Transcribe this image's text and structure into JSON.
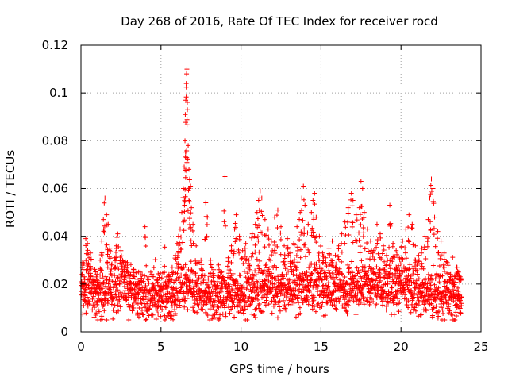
{
  "chart_data": {
    "type": "scatter",
    "title": "Day 268 of 2016, Rate Of TEC Index for receiver rocd",
    "xlabel": "GPS time / hours",
    "ylabel": "ROTI / TECUs",
    "xlim": [
      0,
      25
    ],
    "ylim": [
      0,
      0.12
    ],
    "x_ticks": [
      0,
      5,
      10,
      15,
      20,
      25
    ],
    "y_ticks": [
      0,
      0.02,
      0.04,
      0.06,
      0.08,
      0.1,
      0.12
    ],
    "x_tick_labels": [
      "0",
      "5",
      "10",
      "15",
      "20",
      "25"
    ],
    "y_tick_labels": [
      "0",
      "0.02",
      "0.04",
      "0.06",
      "0.08",
      "0.1",
      "0.12"
    ],
    "grid": true,
    "marker": "+",
    "color": "#ff0000",
    "series": [
      {
        "name": "ROTI",
        "points": [
          [
            0.1,
            0.029
          ],
          [
            0.2,
            0.023
          ],
          [
            0.3,
            0.039
          ],
          [
            0.4,
            0.037
          ],
          [
            0.5,
            0.031
          ],
          [
            0.6,
            0.033
          ],
          [
            0.8,
            0.021
          ],
          [
            0.9,
            0.018
          ],
          [
            1.0,
            0.024
          ],
          [
            1.2,
            0.03
          ],
          [
            1.3,
            0.038
          ],
          [
            1.4,
            0.047
          ],
          [
            1.5,
            0.056
          ],
          [
            1.6,
            0.049
          ],
          [
            1.7,
            0.045
          ],
          [
            1.8,
            0.035
          ],
          [
            1.9,
            0.028
          ],
          [
            2.1,
            0.031
          ],
          [
            2.2,
            0.036
          ],
          [
            2.3,
            0.041
          ],
          [
            2.5,
            0.034
          ],
          [
            2.7,
            0.027
          ],
          [
            2.9,
            0.029
          ],
          [
            3.1,
            0.024
          ],
          [
            3.3,
            0.026
          ],
          [
            3.5,
            0.022
          ],
          [
            3.7,
            0.025
          ],
          [
            4.0,
            0.044
          ],
          [
            4.2,
            0.023
          ],
          [
            4.5,
            0.02
          ],
          [
            4.8,
            0.022
          ],
          [
            5.0,
            0.019
          ],
          [
            5.3,
            0.021
          ],
          [
            5.5,
            0.024
          ],
          [
            5.7,
            0.027
          ],
          [
            5.9,
            0.032
          ],
          [
            6.0,
            0.037
          ],
          [
            6.1,
            0.04
          ],
          [
            6.2,
            0.043
          ],
          [
            6.3,
            0.05
          ],
          [
            6.4,
            0.06
          ],
          [
            6.45,
            0.069
          ],
          [
            6.5,
            0.08
          ],
          [
            6.52,
            0.091
          ],
          [
            6.55,
            0.097
          ],
          [
            6.58,
            0.104
          ],
          [
            6.6,
            0.108
          ],
          [
            6.62,
            0.11
          ],
          [
            6.65,
            0.093
          ],
          [
            6.7,
            0.078
          ],
          [
            6.75,
            0.068
          ],
          [
            6.8,
            0.064
          ],
          [
            6.85,
            0.061
          ],
          [
            6.9,
            0.052
          ],
          [
            7.0,
            0.045
          ],
          [
            7.2,
            0.036
          ],
          [
            7.5,
            0.03
          ],
          [
            7.8,
            0.054
          ],
          [
            7.9,
            0.048
          ],
          [
            8.1,
            0.03
          ],
          [
            8.3,
            0.026
          ],
          [
            8.6,
            0.028
          ],
          [
            8.8,
            0.025
          ],
          [
            9.0,
            0.065
          ],
          [
            9.2,
            0.031
          ],
          [
            9.4,
            0.036
          ],
          [
            9.6,
            0.043
          ],
          [
            9.7,
            0.049
          ],
          [
            9.9,
            0.04
          ],
          [
            10.1,
            0.034
          ],
          [
            10.3,
            0.037
          ],
          [
            10.5,
            0.03
          ],
          [
            10.7,
            0.041
          ],
          [
            10.9,
            0.045
          ],
          [
            11.0,
            0.05
          ],
          [
            11.1,
            0.055
          ],
          [
            11.2,
            0.059
          ],
          [
            11.3,
            0.056
          ],
          [
            11.5,
            0.047
          ],
          [
            11.7,
            0.043
          ],
          [
            11.9,
            0.038
          ],
          [
            12.1,
            0.048
          ],
          [
            12.3,
            0.051
          ],
          [
            12.5,
            0.044
          ],
          [
            12.7,
            0.036
          ],
          [
            12.9,
            0.039
          ],
          [
            13.1,
            0.033
          ],
          [
            13.3,
            0.037
          ],
          [
            13.5,
            0.044
          ],
          [
            13.7,
            0.05
          ],
          [
            13.8,
            0.056
          ],
          [
            13.9,
            0.061
          ],
          [
            14.0,
            0.053
          ],
          [
            14.2,
            0.045
          ],
          [
            14.4,
            0.05
          ],
          [
            14.5,
            0.055
          ],
          [
            14.6,
            0.058
          ],
          [
            14.7,
            0.048
          ],
          [
            14.9,
            0.04
          ],
          [
            15.1,
            0.033
          ],
          [
            15.3,
            0.029
          ],
          [
            15.5,
            0.035
          ],
          [
            15.7,
            0.038
          ],
          [
            15.9,
            0.032
          ],
          [
            16.1,
            0.036
          ],
          [
            16.3,
            0.041
          ],
          [
            16.5,
            0.046
          ],
          [
            16.7,
            0.052
          ],
          [
            16.9,
            0.058
          ],
          [
            17.0,
            0.055
          ],
          [
            17.2,
            0.049
          ],
          [
            17.4,
            0.052
          ],
          [
            17.5,
            0.063
          ],
          [
            17.6,
            0.06
          ],
          [
            17.7,
            0.05
          ],
          [
            17.9,
            0.043
          ],
          [
            18.1,
            0.038
          ],
          [
            18.3,
            0.034
          ],
          [
            18.5,
            0.045
          ],
          [
            18.7,
            0.041
          ],
          [
            18.9,
            0.036
          ],
          [
            19.1,
            0.032
          ],
          [
            19.3,
            0.053
          ],
          [
            19.5,
            0.037
          ],
          [
            19.7,
            0.034
          ],
          [
            19.9,
            0.031
          ],
          [
            20.1,
            0.038
          ],
          [
            20.3,
            0.043
          ],
          [
            20.5,
            0.049
          ],
          [
            20.7,
            0.045
          ],
          [
            20.9,
            0.036
          ],
          [
            21.1,
            0.032
          ],
          [
            21.3,
            0.035
          ],
          [
            21.5,
            0.04
          ],
          [
            21.7,
            0.047
          ],
          [
            21.8,
            0.056
          ],
          [
            21.9,
            0.064
          ],
          [
            22.0,
            0.06
          ],
          [
            22.1,
            0.048
          ],
          [
            22.3,
            0.042
          ],
          [
            22.5,
            0.038
          ],
          [
            22.7,
            0.033
          ],
          [
            22.9,
            0.029
          ],
          [
            23.1,
            0.024
          ],
          [
            23.3,
            0.021
          ],
          [
            23.5,
            0.027
          ],
          [
            23.6,
            0.025
          ],
          [
            23.7,
            0.023
          ]
        ],
        "baseline_band": {
          "x_range": [
            0,
            23.8
          ],
          "typical_range": [
            0.005,
            0.03
          ],
          "hourly_mean": [
            0.017,
            0.016,
            0.019,
            0.016,
            0.014,
            0.015,
            0.018,
            0.016,
            0.014,
            0.016,
            0.017,
            0.019,
            0.018,
            0.019,
            0.02,
            0.019,
            0.018,
            0.02,
            0.019,
            0.019,
            0.018,
            0.016,
            0.015,
            0.014
          ]
        }
      }
    ]
  }
}
